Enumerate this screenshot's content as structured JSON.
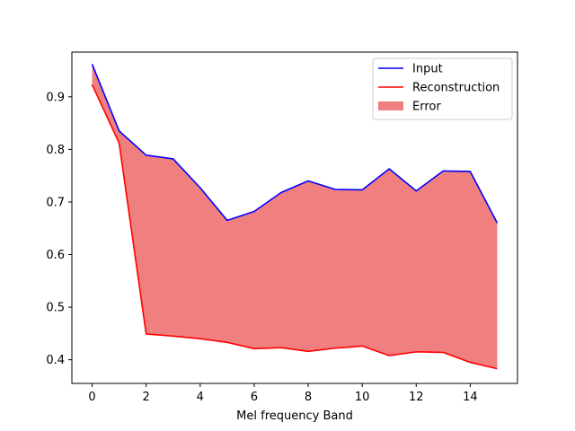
{
  "chart_data": {
    "type": "line",
    "title": "",
    "xlabel": "Mel frequency Band",
    "ylabel": "",
    "x": [
      0,
      1,
      2,
      3,
      4,
      5,
      6,
      7,
      8,
      9,
      10,
      11,
      12,
      13,
      14,
      15
    ],
    "xlim": [
      -0.75,
      15.75
    ],
    "ylim": [
      0.355,
      0.985
    ],
    "x_ticks": [
      0,
      2,
      4,
      6,
      8,
      10,
      12,
      14
    ],
    "x_tick_labels": [
      "0",
      "2",
      "4",
      "6",
      "8",
      "10",
      "12",
      "14"
    ],
    "y_ticks": [
      0.4,
      0.5,
      0.6,
      0.7,
      0.8,
      0.9
    ],
    "y_tick_labels": [
      "0.4",
      "0.5",
      "0.6",
      "0.7",
      "0.8",
      "0.9"
    ],
    "grid": false,
    "legend_position": "top-right",
    "series": [
      {
        "name": "Input",
        "kind": "line",
        "color": "#0000ff",
        "values": [
          0.962,
          0.835,
          0.789,
          0.782,
          0.727,
          0.665,
          0.682,
          0.718,
          0.74,
          0.724,
          0.723,
          0.763,
          0.721,
          0.759,
          0.758,
          0.66
        ]
      },
      {
        "name": "Reconstruction",
        "kind": "line",
        "color": "#ff0000",
        "values": [
          0.923,
          0.812,
          0.449,
          0.445,
          0.44,
          0.433,
          0.421,
          0.423,
          0.416,
          0.422,
          0.426,
          0.408,
          0.415,
          0.414,
          0.395,
          0.383
        ]
      }
    ],
    "fill": {
      "name": "Error",
      "between": [
        "Input",
        "Reconstruction"
      ],
      "color": "#f08080"
    }
  }
}
